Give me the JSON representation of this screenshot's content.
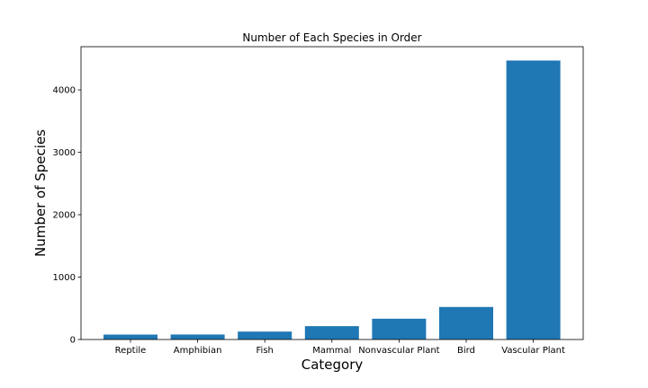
{
  "chart_data": {
    "type": "bar",
    "title": "Number of Each Species in Order",
    "xlabel": "Category",
    "ylabel": "Number of Species",
    "categories": [
      "Reptile",
      "Amphibian",
      "Fish",
      "Mammal",
      "Nonvascular Plant",
      "Bird",
      "Vascular Plant"
    ],
    "values": [
      79,
      80,
      127,
      214,
      333,
      521,
      4470
    ],
    "ylim": [
      0,
      4692
    ],
    "yticks": [
      0,
      1000,
      2000,
      3000,
      4000
    ],
    "grid": false,
    "legend": "none",
    "bar_color": "#1f77b4"
  }
}
